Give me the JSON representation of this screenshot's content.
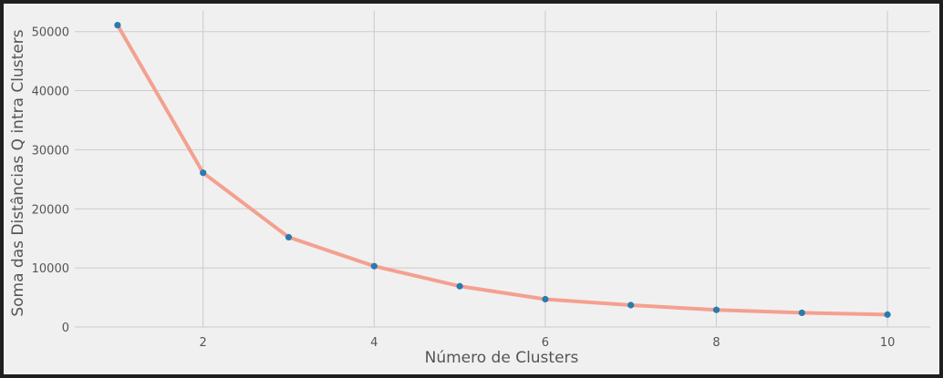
{
  "chart_data": {
    "type": "line",
    "title": "",
    "xlabel": "Número de Clusters",
    "ylabel": "Soma das Distâncias Q intra Clusters",
    "x": [
      1,
      2,
      3,
      4,
      5,
      6,
      7,
      8,
      9,
      10
    ],
    "series": [
      {
        "values": [
          51100,
          26100,
          15200,
          10300,
          6900,
          4700,
          3700,
          2900,
          2400,
          2100
        ],
        "line_color": "#f4a090",
        "marker_color": "#2a7ab0"
      }
    ],
    "xlim": [
      0.5,
      10.5
    ],
    "ylim": [
      0,
      53500
    ],
    "xticks": [
      2,
      4,
      6,
      8,
      10
    ],
    "xtick_labels": [
      "2",
      "4",
      "6",
      "8",
      "10"
    ],
    "yticks": [
      0,
      10000,
      20000,
      30000,
      40000,
      50000
    ],
    "ytick_labels": [
      "0",
      "10000",
      "20000",
      "30000",
      "40000",
      "50000"
    ],
    "grid": true,
    "legend": "none",
    "background_color": "#f0f0f0",
    "grid_color": "#cbcbcb"
  }
}
